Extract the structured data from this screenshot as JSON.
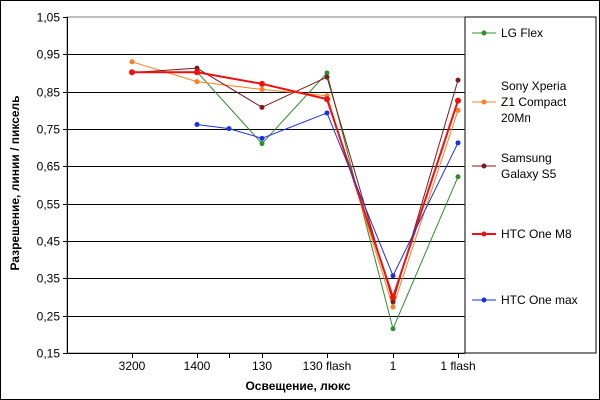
{
  "chart_data": {
    "type": "line",
    "title": "",
    "xlabel": "Освещение, люкс",
    "ylabel": "Разрешение, линии / пиксель",
    "categories": [
      "3200",
      "1400",
      "1400b",
      "130",
      "130 flash",
      "1",
      "1 flash"
    ],
    "tick_labels": [
      "3200",
      "1400",
      "",
      "130",
      "130 flash",
      "1",
      "1 flash"
    ],
    "ylim": [
      0.15,
      1.05
    ],
    "yticks": [
      "0,15",
      "0,25",
      "0,35",
      "0,45",
      "0,55",
      "0,65",
      "0,75",
      "0,85",
      "0,95",
      "1,05"
    ],
    "grid": "horizontal",
    "legend_position": "right",
    "series": [
      {
        "name": "LG Flex",
        "color": "#2f8c2f",
        "x": [
          "3200",
          "1400",
          "130",
          "130 flash",
          "1",
          "1 flash"
        ],
        "values": [
          0.902,
          0.903,
          0.711,
          0.9,
          0.215,
          0.622
        ]
      },
      {
        "name": "Sony Xperia Z1 Compact 20Мп",
        "legend_lines": [
          "Sony Xperia",
          "Z1 Compact",
          "20Мп"
        ],
        "color": "#ff7f1e",
        "x": [
          "3200",
          "1400",
          "130",
          "130 flash",
          "1",
          "1 flash"
        ],
        "values": [
          0.93,
          0.877,
          0.856,
          0.839,
          0.273,
          0.8
        ]
      },
      {
        "name": "Samsung Galaxy S5",
        "legend_lines": [
          "Samsung",
          "Galaxy S5"
        ],
        "color": "#7b1a1a",
        "x": [
          "3200",
          "1400",
          "130",
          "130 flash",
          "1",
          "1 flash"
        ],
        "values": [
          0.901,
          0.913,
          0.808,
          0.889,
          0.287,
          0.881
        ]
      },
      {
        "name": "HTC One M8",
        "color": "#ee1111",
        "x": [
          "3200",
          "1400",
          "130",
          "130 flash",
          "1",
          "1 flash"
        ],
        "values": [
          0.902,
          0.902,
          0.871,
          0.83,
          0.299,
          0.826
        ]
      },
      {
        "name": "HTC One max",
        "color": "#1a2fe6",
        "x": [
          "1400",
          "1400b",
          "130",
          "130 flash",
          "1",
          "1 flash"
        ],
        "values": [
          0.762,
          0.751,
          0.725,
          0.793,
          0.357,
          0.713
        ]
      }
    ]
  }
}
